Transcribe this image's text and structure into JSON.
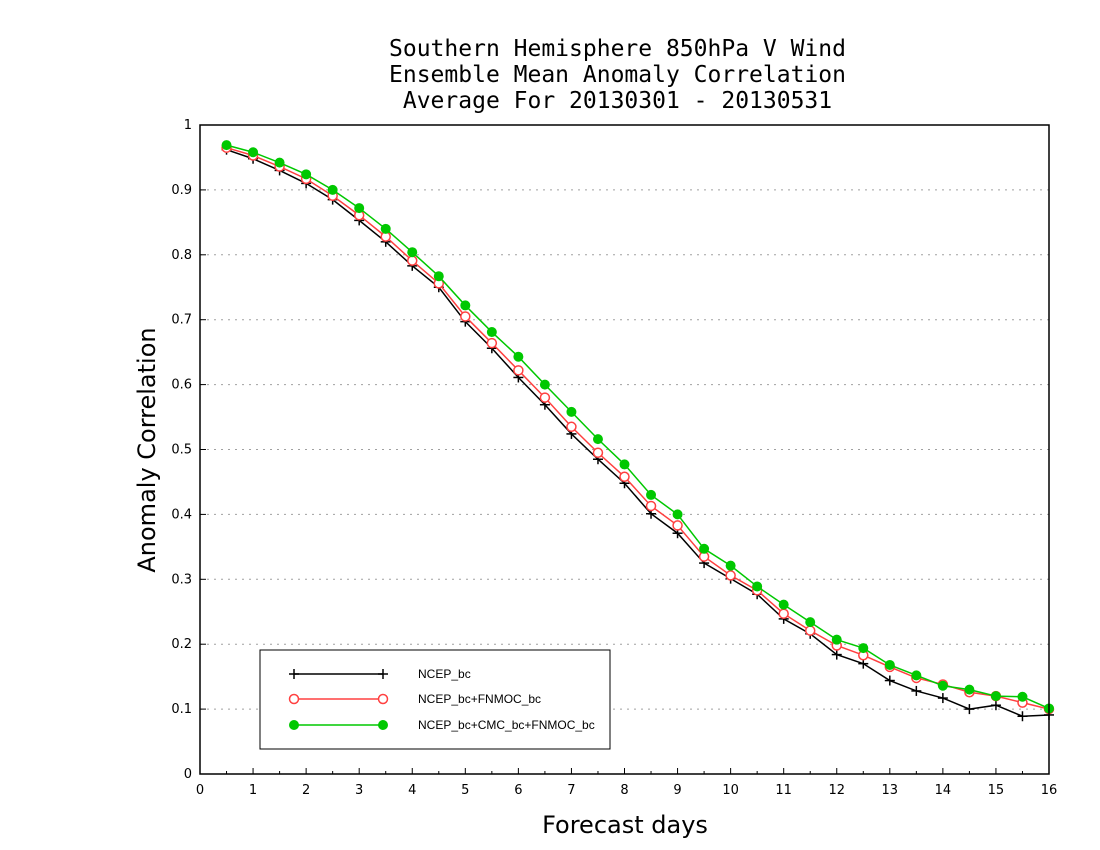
{
  "chart_data": {
    "type": "line",
    "title_lines": [
      "Southern Hemisphere 850hPa V Wind",
      "Ensemble Mean Anomaly Correlation",
      "Average For 20130301 - 20130531"
    ],
    "xlabel": "Forecast days",
    "ylabel": "Anomaly Correlation",
    "xlim": [
      0,
      16
    ],
    "ylim": [
      0,
      1
    ],
    "x_ticks": [
      "0",
      "1",
      "2",
      "3",
      "4",
      "5",
      "6",
      "7",
      "8",
      "9",
      "10",
      "11",
      "12",
      "13",
      "14",
      "15",
      "16"
    ],
    "y_ticks": [
      "0",
      "0.1",
      "0.2",
      "0.3",
      "0.4",
      "0.5",
      "0.6",
      "0.7",
      "0.8",
      "0.9",
      "1"
    ],
    "grid": true,
    "legend_position": "bottom-left",
    "x": [
      0.5,
      1,
      1.5,
      2,
      2.5,
      3,
      3.5,
      4,
      4.5,
      5,
      5.5,
      6,
      6.5,
      7,
      7.5,
      8,
      8.5,
      9,
      9.5,
      10,
      10.5,
      11,
      11.5,
      12,
      12.5,
      13,
      13.5,
      14,
      14.5,
      15,
      15.5,
      16
    ],
    "series": [
      {
        "name": "NCEP_bc",
        "color": "#000000",
        "marker": "plus",
        "values": [
          0.962,
          0.948,
          0.93,
          0.91,
          0.885,
          0.853,
          0.82,
          0.783,
          0.75,
          0.697,
          0.656,
          0.611,
          0.569,
          0.524,
          0.485,
          0.448,
          0.401,
          0.371,
          0.325,
          0.301,
          0.277,
          0.239,
          0.216,
          0.184,
          0.17,
          0.144,
          0.128,
          0.117,
          0.1,
          0.106,
          0.089,
          0.091
        ]
      },
      {
        "name": "NCEP_bc+FNMOC_bc",
        "color": "#ff4040",
        "marker": "open-circle",
        "values": [
          0.965,
          0.953,
          0.936,
          0.917,
          0.891,
          0.861,
          0.828,
          0.791,
          0.756,
          0.705,
          0.664,
          0.622,
          0.58,
          0.535,
          0.495,
          0.458,
          0.413,
          0.383,
          0.335,
          0.306,
          0.283,
          0.247,
          0.221,
          0.198,
          0.183,
          0.165,
          0.148,
          0.138,
          0.126,
          0.12,
          0.11,
          0.1
        ]
      },
      {
        "name": "NCEP_bc+CMC_bc+FNMOC_bc",
        "color": "#00c800",
        "marker": "filled-circle",
        "values": [
          0.969,
          0.958,
          0.942,
          0.924,
          0.9,
          0.872,
          0.84,
          0.804,
          0.767,
          0.722,
          0.681,
          0.643,
          0.6,
          0.558,
          0.516,
          0.477,
          0.43,
          0.4,
          0.347,
          0.321,
          0.289,
          0.261,
          0.234,
          0.207,
          0.194,
          0.168,
          0.152,
          0.136,
          0.13,
          0.12,
          0.119,
          0.101
        ]
      }
    ]
  }
}
